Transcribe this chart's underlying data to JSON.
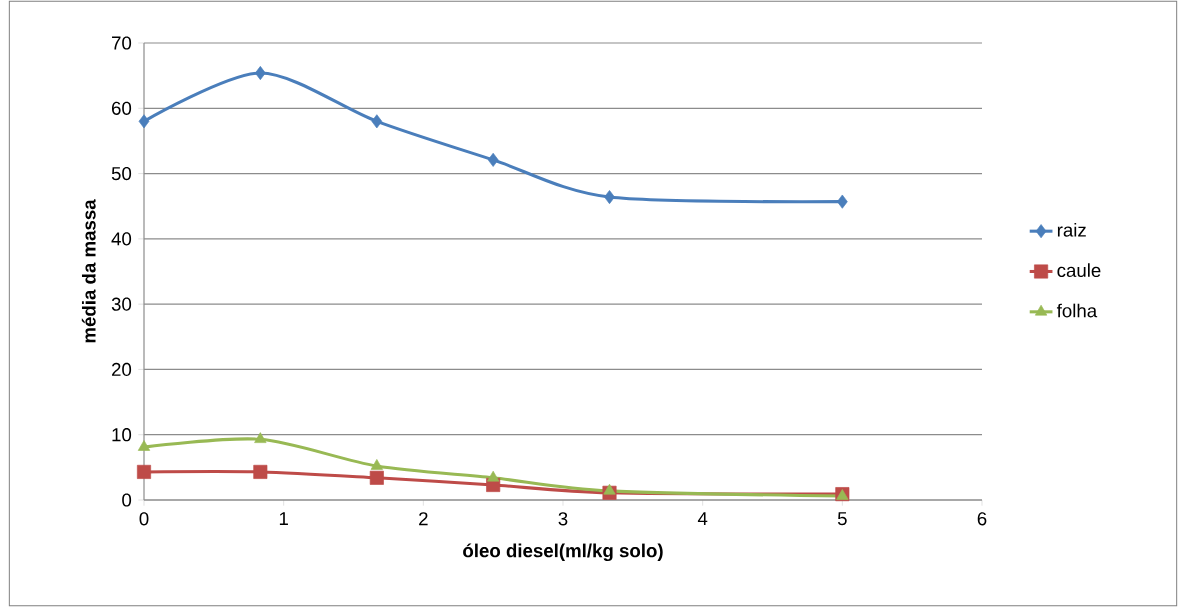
{
  "chart_data": {
    "type": "line",
    "xlabel": "óleo diesel(ml/kg solo)",
    "ylabel": "média da massa",
    "x": [
      0,
      0.833,
      1.667,
      2.5,
      3.333,
      5
    ],
    "series": [
      {
        "name": "raiz",
        "color": "#4a7ebb",
        "marker": "diamond",
        "values": [
          58.0,
          65.4,
          58.0,
          52.1,
          46.4,
          45.7
        ]
      },
      {
        "name": "caule",
        "color": "#be4b48",
        "marker": "square",
        "values": [
          4.3,
          4.3,
          3.4,
          2.3,
          1.1,
          0.9
        ]
      },
      {
        "name": "folha",
        "color": "#98b954",
        "marker": "triangle",
        "values": [
          8.1,
          9.3,
          5.2,
          3.4,
          1.4,
          0.6
        ]
      }
    ],
    "xlim": [
      0,
      6
    ],
    "xticks": [
      0,
      1,
      2,
      3,
      4,
      5,
      6
    ],
    "ylim": [
      0,
      70
    ],
    "yticks": [
      0,
      10,
      20,
      30,
      40,
      50,
      60,
      70
    ],
    "grid": "y",
    "legend": "right",
    "line_style": "solid"
  }
}
